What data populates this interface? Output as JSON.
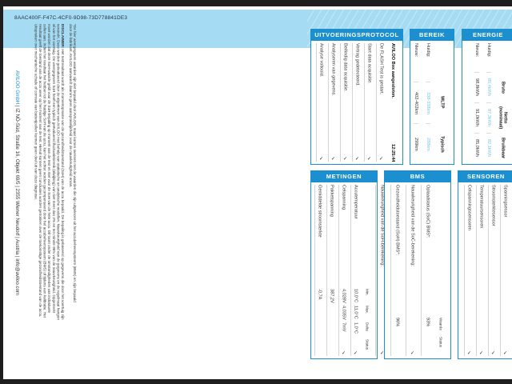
{
  "doc_id": "8AAC400F-F47C-4CF0-9D98-73D778841DE3",
  "note": "*De hier weergegeven waarden zijn niet bepaald door AVILOO, maar komen overeen met de waarden die zijn uitgelezen uit het accubeheersysteem (BMS) en zijn bepaald door de fabrikant. AVILOO aanvaardt daarom geen aansprakelijkheid voor de nauwkeurigheid ervan.",
  "disclaimer_label": "DISCLAIMER:",
  "disclaimer": " Het testresultaat wordt als momentopname van de gezondheidstoestand (SoH) van de accu bepaald. De bepaling is gebaseerd op gegevens die door het voertuig zijn verstrekt. Deze worden geëvalueerd door de algoritmen van AVILOO met behulp van statistische en analytische modellen. Nauwkeurigheid van de gegevens en de regelmaat hangen af van het voertuig. De weergegeven SoH heeft een typisch geëvalueerd fluctuatiebereik (afwijking) van niet meer dan 2% en ten minste 95% van de nauwkeurigheid. Opgemerkt moet worden dat deze SoH-waarde geldt voor de SoH-bepaling op moment van de test en niet voor de SoH van de hele accu. Dit toont onder de omstandigheden van individuele cellen aan. Indien het resultaat het hebben tot de huidige SoH van de accu, kan het echter worden gecompenseerd door het accubeheersysteem (BMS) of tijdens een kalibratie. Het resultaat geeft de toestand van de accu weer op het moment van de test. Hieruit kunnen geen conclusies worden getrokken over de toekomstige gezondheidstoestand van de accu. Uitspraken over mechanische schade of corrosie van batterijcellen kunnen geen deel uit van deze diagnose.",
  "footer": {
    "brand": "AVILOO GmbH",
    "rest": " | IZ NÖ-Süd, Straße 16, Objekt 69/5 | 2355 Wiener Neudorf | Austria | info@aviloo.com"
  },
  "protocol": {
    "title": "UITVOERINGSPROTOCOL",
    "head": "AVILOO Box aangesloten.",
    "time": "12:25:44",
    "items": [
      "De FLASH Test is gestart.",
      "Start data acquisitie.",
      "Vertrag gedetecteerd.",
      "Beëindig data acquisitie.",
      "Analyseren van gegevens.",
      "Analyse voltooid."
    ]
  },
  "bereik": {
    "title": "BEREIK",
    "cols": [
      "WLTP",
      "Typisch"
    ],
    "rows": [
      {
        "label": "Huidig:",
        "values": [
          "338-338km",
          "288km"
        ]
      },
      {
        "label": "Nieuw:",
        "values": [
          "402-402km",
          "299km"
        ]
      }
    ]
  },
  "energie": {
    "title": "ENERGIE",
    "cols": [
      "Bruto",
      "Netto (nominaal)",
      "Bruikbaar"
    ],
    "rows": [
      {
        "label": "Huidig:",
        "values": [
          "85,4kWh",
          "87,3kWh",
          "82,1kWh"
        ]
      },
      {
        "label": "Nieuw:",
        "values": [
          "98,8kWh",
          "91,0kWh",
          "85,0kWh"
        ]
      }
    ]
  },
  "metingen": {
    "title": "METINGEN",
    "cols": [
      "Min.",
      "Max.",
      "Delta",
      "Status"
    ],
    "rows": [
      {
        "label": "Accutemperatuur",
        "values": [
          "10,0°C",
          "11,0°C",
          "1,0°C"
        ],
        "ok": true
      },
      {
        "label": "Celspanning",
        "values": [
          "4,028V",
          "4,035V",
          "7mV"
        ],
        "ok": true
      },
      {
        "label": "Pakketspanning",
        "values": [
          "387,2V",
          "",
          ""
        ],
        "ok": false
      },
      {
        "label": "Gemiddelde stroomsterkte",
        "values": [
          "-0,7A",
          "",
          ""
        ],
        "ok": false
      }
    ]
  },
  "bms": {
    "title": "BMS",
    "cols": [
      "Waarde",
      "Status"
    ],
    "rows": [
      {
        "label": "Oplaadstatus (SoC) BMS*:",
        "value": "93%",
        "ok": false
      },
      {
        "label": "Nauwkeurigheid van de SoC-berekening:",
        "value": "",
        "ok": true
      },
      {
        "label": "Gezondheidstoestand (SoH) BMS*:",
        "value": "96%",
        "ok": false
      },
      {
        "label": "Nauwkeurigheid van de SoH-berekening:",
        "value": "",
        "ok": true
      }
    ]
  },
  "sensoren": {
    "title": "SENSOREN",
    "items": [
      "Spanningsensor",
      "Stroomsterktesensor",
      "Temperatuursensoren",
      "Celspanningssensoren"
    ]
  },
  "check": "✓",
  "colors": {
    "accent": "#1b8fd0",
    "band": "#a6dcf3"
  }
}
